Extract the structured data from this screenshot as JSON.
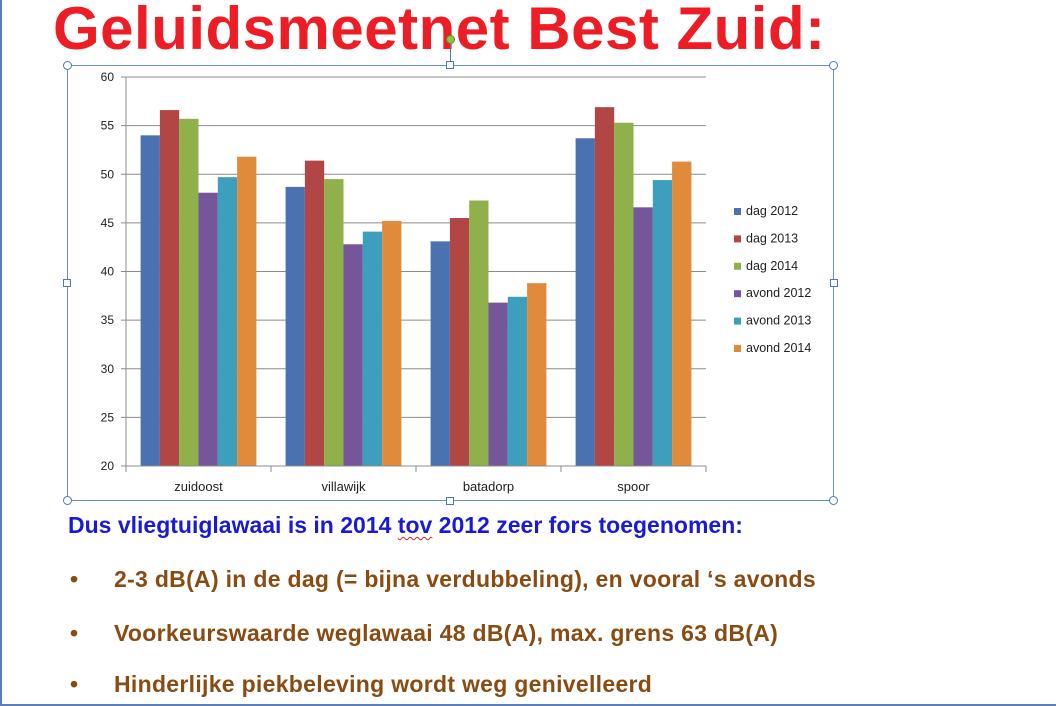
{
  "slide": {
    "title": "Geluidsmeetnet Best Zuid:",
    "summary": {
      "part1": "Dus vliegtuiglawaai  is in 2014 ",
      "part2": "tov",
      "part3": " 2012 zeer fors toegenomen:"
    },
    "bullets": [
      "2-3 dB(A) in de dag (= bijna verdubbeling), en vooral ‘s avonds",
      "Voorkeurswaarde weglawaai 48 dB(A), max. grens 63 dB(A)",
      "Hinderlijke piekbeleving wordt weg genivelleerd"
    ],
    "bullet_symbol": "•"
  },
  "chart_data": {
    "type": "bar",
    "categories": [
      "zuidoost",
      "villawijk",
      "batadorp",
      "spoor"
    ],
    "series": [
      {
        "name": "dag 2012",
        "color": "#4a72b0",
        "values": [
          54.0,
          48.7,
          43.1,
          53.7
        ]
      },
      {
        "name": "dag 2013",
        "color": "#b14644",
        "values": [
          56.6,
          51.4,
          45.5,
          56.9
        ]
      },
      {
        "name": "dag 2014",
        "color": "#8fb04b",
        "values": [
          55.7,
          49.5,
          47.3,
          55.3
        ]
      },
      {
        "name": "avond 2012",
        "color": "#75569b",
        "values": [
          48.1,
          42.8,
          36.8,
          46.6
        ]
      },
      {
        "name": "avond 2013",
        "color": "#3d9fbd",
        "values": [
          49.7,
          44.1,
          37.4,
          49.4
        ]
      },
      {
        "name": "avond 2014",
        "color": "#e08a3c",
        "values": [
          51.8,
          45.2,
          38.8,
          51.3
        ]
      }
    ],
    "ylim": [
      20,
      60
    ],
    "yticks": [
      20,
      25,
      30,
      35,
      40,
      45,
      50,
      55,
      60
    ],
    "grid": true,
    "legend": "right"
  }
}
